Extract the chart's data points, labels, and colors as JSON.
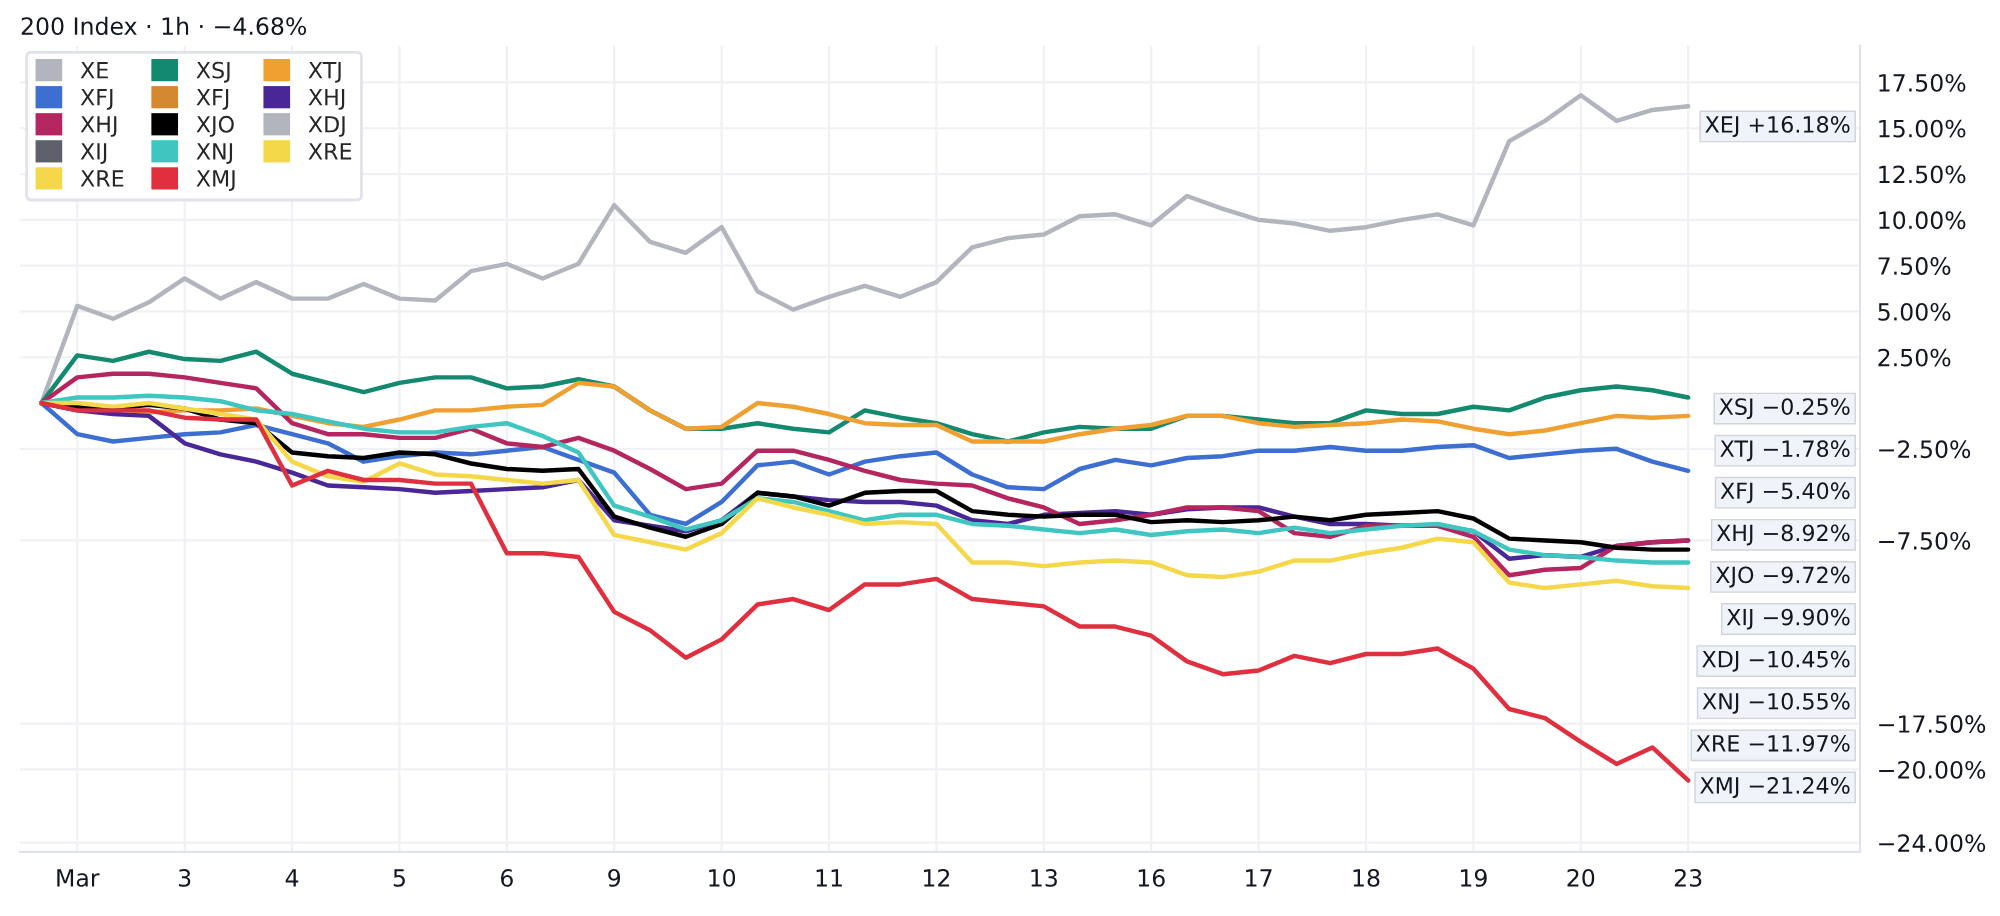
{
  "chart_data": {
    "type": "line",
    "title": "200 Index · 1h · −4.68%",
    "categories": [
      null,
      "Mar",
      null,
      null,
      "3",
      null,
      null,
      "4",
      null,
      null,
      "5",
      null,
      null,
      "6",
      null,
      null,
      "9",
      null,
      null,
      "10",
      null,
      null,
      "11",
      null,
      null,
      "12",
      null,
      null,
      "13",
      null,
      null,
      "16",
      null,
      null,
      "17",
      null,
      null,
      "18",
      null,
      null,
      "19",
      null,
      null,
      "20",
      null,
      null,
      "23"
    ],
    "series": [
      {
        "name": "XE",
        "color": "#b2b5be",
        "values": [
          0,
          5.3,
          4.6,
          5.5,
          6.8,
          5.7,
          6.6,
          5.7,
          5.7,
          6.5,
          5.7,
          5.6,
          7.2,
          7.6,
          6.8,
          7.6,
          10.8,
          8.8,
          8.2,
          9.6,
          6.1,
          5.1,
          5.8,
          6.4,
          5.8,
          6.6,
          8.5,
          9.0,
          9.2,
          10.2,
          10.3,
          9.7,
          11.3,
          10.6,
          10.0,
          9.8,
          9.4,
          9.6,
          10.0,
          10.3,
          9.7,
          14.3,
          15.4,
          16.8,
          15.4,
          16.0,
          16.2
        ]
      },
      {
        "name": "XSJ",
        "color": "#138a6f",
        "values": [
          0,
          2.6,
          2.3,
          2.8,
          2.4,
          2.3,
          2.8,
          1.6,
          1.1,
          0.6,
          1.1,
          1.4,
          1.4,
          0.8,
          0.9,
          1.3,
          0.9,
          -0.4,
          -1.4,
          -1.4,
          -1.1,
          -1.4,
          -1.6,
          -0.4,
          -0.8,
          -1.1,
          -1.7,
          -2.1,
          -1.6,
          -1.3,
          -1.4,
          -1.4,
          -0.7,
          -0.7,
          -0.9,
          -1.1,
          -1.1,
          -0.4,
          -0.6,
          -0.6,
          -0.2,
          -0.4,
          0.3,
          0.7,
          0.9,
          0.7,
          0.3
        ]
      },
      {
        "name": "XTJ",
        "color": "#f0a030",
        "values": [
          0,
          -0.1,
          -0.3,
          -0.5,
          -0.4,
          -0.4,
          -0.3,
          -0.7,
          -1.1,
          -1.3,
          -0.9,
          -0.4,
          -0.4,
          -0.2,
          -0.1,
          1.1,
          0.9,
          -0.4,
          -1.4,
          -1.3,
          0,
          -0.2,
          -0.6,
          -1.1,
          -1.2,
          -1.2,
          -2.1,
          -2.1,
          -2.1,
          -1.7,
          -1.4,
          -1.2,
          -0.7,
          -0.7,
          -1.1,
          -1.3,
          -1.2,
          -1.1,
          -0.9,
          -1.0,
          -1.4,
          -1.7,
          -1.5,
          -1.1,
          -0.7,
          -0.8,
          -0.7
        ]
      },
      {
        "name": "XFJ",
        "color": "#3c6fd1",
        "values": [
          0,
          -1.7,
          -2.1,
          -1.9,
          -1.7,
          -1.6,
          -1.2,
          -1.7,
          -2.2,
          -3.2,
          -2.9,
          -2.7,
          -2.8,
          -2.6,
          -2.4,
          -3.1,
          -3.8,
          -6.1,
          -6.6,
          -5.4,
          -3.4,
          -3.2,
          -3.9,
          -3.2,
          -2.9,
          -2.7,
          -3.9,
          -4.6,
          -4.7,
          -3.6,
          -3.1,
          -3.4,
          -3.0,
          -2.9,
          -2.6,
          -2.6,
          -2.4,
          -2.6,
          -2.6,
          -2.4,
          -2.3,
          -3.0,
          -2.8,
          -2.6,
          -2.5,
          -3.2,
          -3.7
        ]
      },
      {
        "name": "XFJ",
        "color": "#d4882f",
        "values": [
          null,
          null,
          null,
          null,
          null,
          null,
          null,
          null,
          null,
          null,
          null,
          null,
          null,
          null,
          null,
          null,
          null,
          null,
          null,
          null,
          null,
          null,
          null,
          null,
          null,
          null,
          null,
          null,
          null,
          null,
          null,
          null,
          null,
          null,
          null,
          null,
          null,
          null,
          null,
          null,
          null,
          null,
          null,
          null,
          null,
          null,
          null
        ]
      },
      {
        "name": "XHJ",
        "color": "#4a2796",
        "values": [
          0,
          -0.4,
          -0.6,
          -0.7,
          -2.2,
          -2.8,
          -3.2,
          -3.8,
          -4.5,
          -4.6,
          -4.7,
          -4.9,
          -4.8,
          -4.7,
          -4.6,
          -4.2,
          -6.4,
          -6.7,
          -7.0,
          -6.4,
          -4.9,
          -5.1,
          -5.3,
          -5.4,
          -5.4,
          -5.6,
          -6.4,
          -6.6,
          -6.1,
          -6.0,
          -5.9,
          -6.1,
          -5.8,
          -5.7,
          -5.7,
          -6.2,
          -6.6,
          -6.6,
          -6.7,
          -6.7,
          -7.0,
          -8.5,
          -8.3,
          -8.4,
          -7.8,
          -7.6,
          -7.5
        ]
      },
      {
        "name": "XHJ",
        "color": "#b5255f",
        "values": [
          0,
          1.4,
          1.6,
          1.6,
          1.4,
          1.1,
          0.8,
          -1.1,
          -1.7,
          -1.7,
          -1.9,
          -1.9,
          -1.4,
          -2.2,
          -2.4,
          -1.9,
          -2.6,
          -3.6,
          -4.7,
          -4.4,
          -2.6,
          -2.6,
          -3.1,
          -3.7,
          -4.2,
          -4.4,
          -4.5,
          -5.2,
          -5.7,
          -6.6,
          -6.4,
          -6.1,
          -5.7,
          -5.7,
          -5.9,
          -7.1,
          -7.3,
          -6.7,
          -6.7,
          -6.7,
          -7.3,
          -9.4,
          -9.1,
          -9.0,
          -7.8,
          -7.6,
          -7.5
        ]
      },
      {
        "name": "XJO",
        "color": "#000000",
        "values": [
          0,
          -0.2,
          -0.3,
          -0.1,
          -0.3,
          -0.9,
          -1.1,
          -2.7,
          -2.9,
          -3.0,
          -2.7,
          -2.8,
          -3.3,
          -3.6,
          -3.7,
          -3.6,
          -6.2,
          -6.8,
          -7.3,
          -6.6,
          -4.9,
          -5.1,
          -5.6,
          -4.9,
          -4.8,
          -4.8,
          -5.9,
          -6.1,
          -6.2,
          -6.1,
          -6.1,
          -6.5,
          -6.4,
          -6.5,
          -6.4,
          -6.2,
          -6.4,
          -6.1,
          -6.0,
          -5.9,
          -6.3,
          -7.4,
          -7.5,
          -7.6,
          -7.9,
          -8.0,
          -8.0
        ]
      },
      {
        "name": "XDJ",
        "color": "#b2b5be",
        "values": [
          null,
          null,
          null,
          null,
          null,
          null,
          null,
          null,
          null,
          null,
          null,
          null,
          null,
          null,
          null,
          null,
          null,
          null,
          null,
          null,
          null,
          null,
          null,
          null,
          null,
          null,
          null,
          null,
          null,
          null,
          null,
          null,
          null,
          null,
          null,
          null,
          null,
          null,
          null,
          null,
          null,
          null,
          null,
          null,
          null,
          null,
          null
        ]
      },
      {
        "name": "XIJ",
        "color": "#5d606b",
        "values": [
          null,
          null,
          null,
          null,
          null,
          null,
          null,
          null,
          null,
          null,
          null,
          null,
          null,
          null,
          null,
          null,
          null,
          null,
          null,
          null,
          null,
          null,
          null,
          null,
          null,
          null,
          null,
          null,
          null,
          null,
          null,
          null,
          null,
          null,
          null,
          null,
          null,
          null,
          null,
          null,
          null,
          null,
          null,
          null,
          null,
          null,
          null
        ]
      },
      {
        "name": "XNJ",
        "color": "#3fc6c0",
        "values": [
          0,
          0.3,
          0.3,
          0.4,
          0.3,
          0.1,
          -0.4,
          -0.6,
          -1.0,
          -1.4,
          -1.6,
          -1.6,
          -1.3,
          -1.1,
          -1.8,
          -2.7,
          -5.6,
          -6.2,
          -6.9,
          -6.4,
          -5.2,
          -5.4,
          -5.9,
          -6.4,
          -6.1,
          -6.1,
          -6.6,
          -6.7,
          -6.9,
          -7.1,
          -6.9,
          -7.2,
          -7.0,
          -6.9,
          -7.1,
          -6.8,
          -7.1,
          -6.9,
          -6.7,
          -6.6,
          -7.0,
          -8.0,
          -8.3,
          -8.4,
          -8.6,
          -8.7,
          -8.7
        ]
      },
      {
        "name": "XRE",
        "color": "#f5d84a",
        "values": [
          0,
          0,
          -0.2,
          0,
          -0.3,
          -0.6,
          -0.9,
          -3.2,
          -4.0,
          -4.3,
          -3.3,
          -3.9,
          -4.0,
          -4.2,
          -4.4,
          -4.2,
          -7.2,
          -7.6,
          -8.0,
          -7.1,
          -5.2,
          -5.7,
          -6.1,
          -6.6,
          -6.5,
          -6.6,
          -8.7,
          -8.7,
          -8.9,
          -8.7,
          -8.6,
          -8.7,
          -9.4,
          -9.5,
          -9.2,
          -8.6,
          -8.6,
          -8.2,
          -7.9,
          -7.4,
          -7.6,
          -9.8,
          -10.1,
          -9.9,
          -9.7,
          -10.0,
          -10.1
        ]
      },
      {
        "name": "XRE",
        "color": "#f5d84a",
        "values": [
          null,
          null,
          null,
          null,
          null,
          null,
          null,
          null,
          null,
          null,
          null,
          null,
          null,
          null,
          null,
          null,
          null,
          null,
          null,
          null,
          null,
          null,
          null,
          null,
          null,
          null,
          null,
          null,
          null,
          null,
          null,
          null,
          null,
          null,
          null,
          null,
          null,
          null,
          null,
          null,
          null,
          null,
          null,
          null,
          null,
          null,
          null
        ]
      },
      {
        "name": "XMJ",
        "color": "#e0303f",
        "values": [
          0,
          -0.4,
          -0.4,
          -0.4,
          -0.8,
          -0.9,
          -0.9,
          -4.5,
          -3.7,
          -4.2,
          -4.2,
          -4.4,
          -4.4,
          -8.2,
          -8.2,
          -8.4,
          -11.4,
          -12.4,
          -13.9,
          -12.9,
          -11.0,
          -10.7,
          -11.3,
          -9.9,
          -9.9,
          -9.6,
          -10.7,
          -10.9,
          -11.1,
          -12.2,
          -12.2,
          -12.7,
          -14.1,
          -14.8,
          -14.6,
          -13.8,
          -14.2,
          -13.7,
          -13.7,
          -13.4,
          -14.5,
          -16.7,
          -17.2,
          -18.5,
          -19.7,
          -18.8,
          -20.6
        ]
      }
    ],
    "ylim": [
      -24.5,
      19.5
    ],
    "yticks": [
      {
        "value": 17.5,
        "label": "17.50%"
      },
      {
        "value": 15,
        "label": "15.00%"
      },
      {
        "value": 12.5,
        "label": "12.50%"
      },
      {
        "value": 10,
        "label": "10.00%"
      },
      {
        "value": 7.5,
        "label": "7.50%"
      },
      {
        "value": 5,
        "label": "5.00%"
      },
      {
        "value": 2.5,
        "label": "2.50%"
      },
      {
        "value": -2.5,
        "label": "−2.50%"
      },
      {
        "value": -7.5,
        "label": "−7.50%"
      },
      {
        "value": -17.5,
        "label": "−17.50%"
      },
      {
        "value": -20,
        "label": "−20.00%"
      },
      {
        "value": -24,
        "label": "−24.00%"
      }
    ],
    "annotations": [
      "XEJ +16.18%",
      "XSJ −0.25%",
      "XTJ −1.78%",
      "XFJ −5.40%",
      "XHJ −8.92%",
      "XJO −9.72%",
      "XIJ −9.90%",
      "XDJ −10.45%",
      "XNJ −10.55%",
      "XRE −11.97%",
      "XMJ −21.24%"
    ],
    "grid": true,
    "legend": "top left",
    "line_style": "solid"
  }
}
